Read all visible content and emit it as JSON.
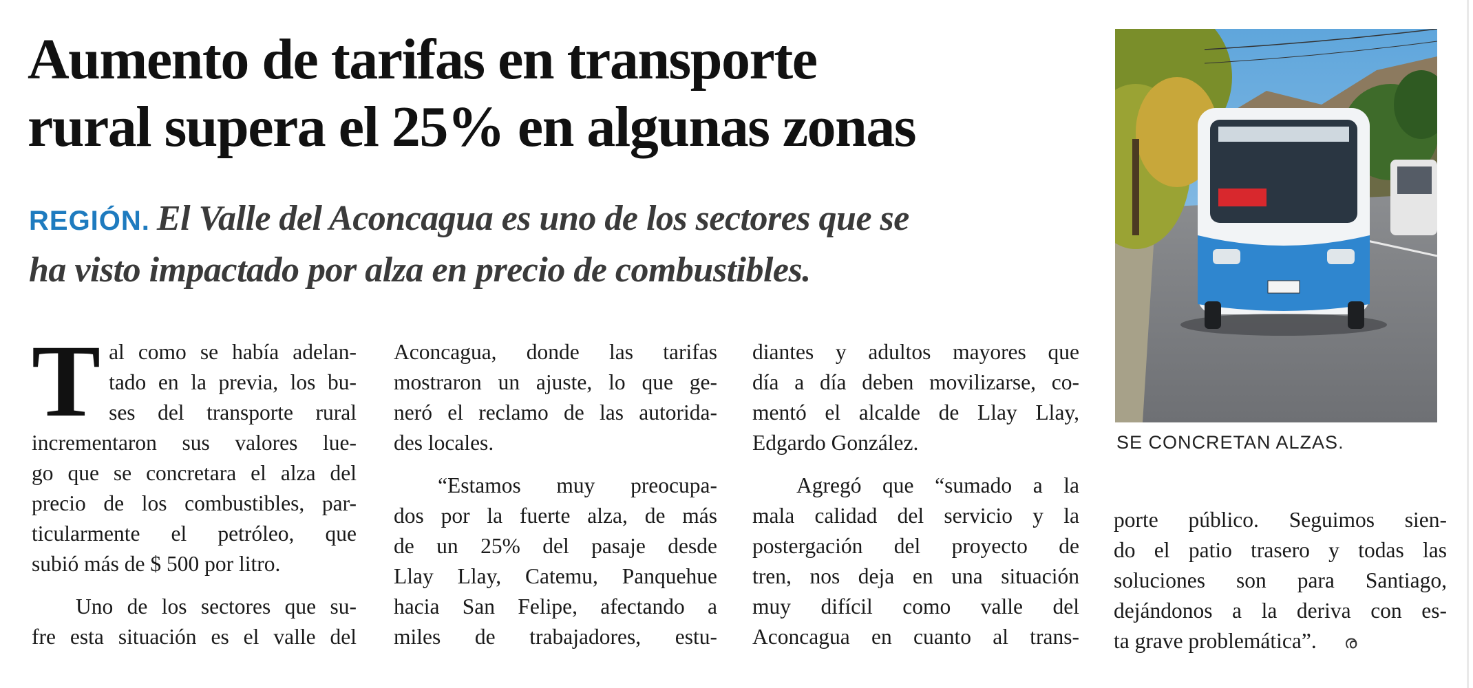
{
  "article": {
    "headline_line1": "Aumento de tarifas en transporte",
    "headline_line2": "rural supera el 25% en algunas zonas",
    "kicker": "REGIÓN.",
    "deck_line1": "El Valle del Aconcagua es uno de los sectores que se",
    "deck_line2": "ha visto impactado por alza en precio de combustibles.",
    "photo_caption": "SE CONCRETAN ALZAS.",
    "dropcap": "T",
    "col1": [
      "al como se había adelan-",
      "tado en la previa, los bu-",
      "ses del transporte rural",
      "incrementaron sus valores lue-",
      "go que se concretara el alza del",
      "precio de los combustibles, par-",
      "ticularmente el petróleo, que",
      "subió más de $ 500 por litro.",
      "Uno de los sectores que su-",
      "fre esta situación es el valle del"
    ],
    "col2": [
      "Aconcagua, donde las tarifas",
      "mostraron un ajuste, lo que ge-",
      "neró el reclamo de las autorida-",
      "des locales.",
      "“Estamos muy preocupa-",
      "dos por la fuerte alza, de más",
      "de un 25% del pasaje desde",
      "Llay Llay, Catemu, Panquehue",
      "hacia San Felipe, afectando a",
      "miles de trabajadores, estu-"
    ],
    "col3": [
      "diantes y adultos mayores que",
      "día a día deben movilizarse, co-",
      "mentó el alcalde de Llay Llay,",
      "Edgardo González.",
      "Agregó que “sumado a la",
      "mala calidad del servicio y la",
      "postergación del proyecto de",
      "tren, nos deja en una situación",
      "muy difícil como valle del",
      "Aconcagua en cuanto al trans-"
    ],
    "col4": [
      "porte público. Seguimos sien-",
      "do el patio trasero y todas las",
      "soluciones son para Santiago,",
      "dejándonos a la deriva con es-",
      "ta grave problemática”."
    ],
    "end_mark_icon": "end-of-article-mark",
    "colors": {
      "kicker": "#1e7bbf",
      "deck": "#3a3a3a",
      "text": "#1a1a1a"
    }
  }
}
